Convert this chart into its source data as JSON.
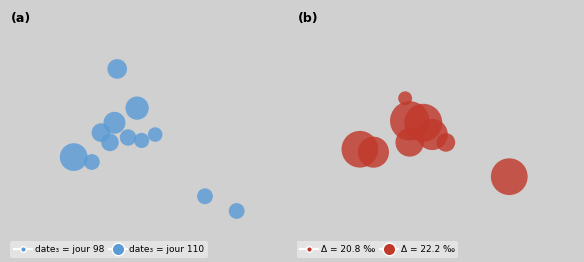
{
  "fig_width": 5.84,
  "fig_height": 2.62,
  "dpi": 100,
  "panel_a_label": "(a)",
  "panel_b_label": "(b)",
  "map_lon_min": -10,
  "map_lon_max": 20,
  "map_lat_min": 35,
  "map_lat_max": 58,
  "panel_a_circles": [
    {
      "lon": 2.3,
      "lat": 51.5,
      "size": 200,
      "color": "#5b9bd5",
      "day": 110
    },
    {
      "lon": 4.5,
      "lat": 47.5,
      "size": 280,
      "color": "#5b9bd5",
      "day": 110
    },
    {
      "lon": 2.0,
      "lat": 46.0,
      "size": 250,
      "color": "#5b9bd5",
      "day": 110
    },
    {
      "lon": 0.5,
      "lat": 45.0,
      "size": 180,
      "color": "#5b9bd5",
      "day": 110
    },
    {
      "lon": 1.5,
      "lat": 44.0,
      "size": 160,
      "color": "#5b9bd5",
      "day": 110
    },
    {
      "lon": 3.5,
      "lat": 44.5,
      "size": 140,
      "color": "#5b9bd5",
      "day": 110
    },
    {
      "lon": 5.0,
      "lat": 44.2,
      "size": 120,
      "color": "#5b9bd5",
      "day": 110
    },
    {
      "lon": 6.5,
      "lat": 44.8,
      "size": 110,
      "color": "#5b9bd5",
      "day": 110
    },
    {
      "lon": -2.5,
      "lat": 42.5,
      "size": 400,
      "color": "#5b9bd5",
      "day": 110
    },
    {
      "lon": -0.5,
      "lat": 42.0,
      "size": 130,
      "color": "#5b9bd5",
      "day": 98
    },
    {
      "lon": 12.0,
      "lat": 38.5,
      "size": 130,
      "color": "#5b9bd5",
      "day": 98
    },
    {
      "lon": 15.5,
      "lat": 37.0,
      "size": 130,
      "color": "#5b9bd5",
      "day": 98
    }
  ],
  "panel_b_circles": [
    {
      "lon": 2.5,
      "lat": 48.5,
      "size": 100,
      "color": "#c0392b",
      "delta": 20.8
    },
    {
      "lon": 3.0,
      "lat": 46.2,
      "size": 800,
      "color": "#c0392b",
      "delta": 22.2
    },
    {
      "lon": 4.5,
      "lat": 46.0,
      "size": 750,
      "color": "#c0392b",
      "delta": 22.2
    },
    {
      "lon": 5.5,
      "lat": 44.8,
      "size": 500,
      "color": "#c0392b",
      "delta": 22.0
    },
    {
      "lon": 3.0,
      "lat": 44.0,
      "size": 420,
      "color": "#c0392b",
      "delta": 22.0
    },
    {
      "lon": -2.5,
      "lat": 43.3,
      "size": 700,
      "color": "#c0392b",
      "delta": 22.2
    },
    {
      "lon": -1.0,
      "lat": 43.0,
      "size": 500,
      "color": "#c0392b",
      "delta": 22.0
    },
    {
      "lon": 7.0,
      "lat": 44.0,
      "size": 180,
      "color": "#c0392b",
      "delta": 20.9
    },
    {
      "lon": 14.0,
      "lat": 40.5,
      "size": 700,
      "color": "#c0392b",
      "delta": 22.2
    }
  ],
  "legend_a_small_label": "date₃ = jour 98",
  "legend_a_large_label": "date₃ = jour 110",
  "legend_a_color": "#5b9bd5",
  "legend_b_small_label": "Δ = 20.8 ‰",
  "legend_b_large_label": "Δ = 22.2 ‰",
  "legend_b_color": "#c0392b",
  "legend_bg_color": "#e8e8e8",
  "fig_bg_color": "#d0d0d0"
}
